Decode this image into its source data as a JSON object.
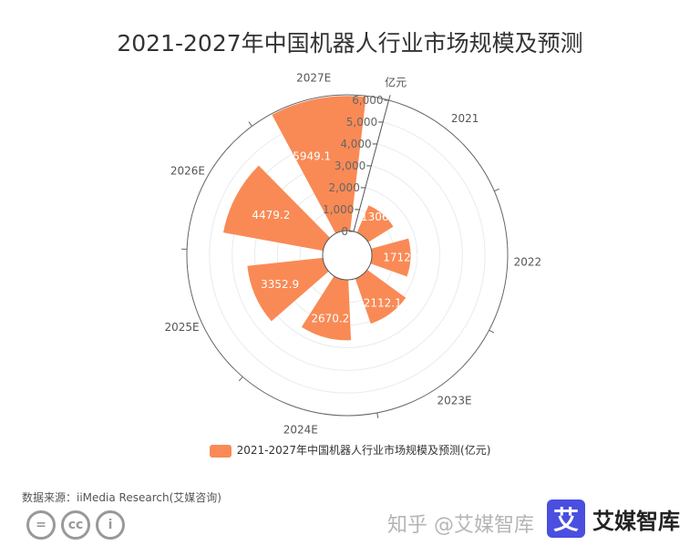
{
  "title": "2021-2027年中国机器人行业市场规模及预测",
  "chart_data": {
    "type": "polar-bar",
    "title": "2021-2027年中国机器人行业市场规模及预测",
    "categories": [
      "2021",
      "2022",
      "2023E",
      "2024E",
      "2025E",
      "2026E",
      "2027E"
    ],
    "series": [
      {
        "name": "2021-2027年中国机器人行业市场规模及预测(亿元)",
        "values": [
          1306.8,
          1712.4,
          2112.1,
          2670.2,
          3352.9,
          4479.2,
          5949.1
        ]
      }
    ],
    "data_labels": [
      "1306.8",
      "1712.4",
      "2112.1",
      "2670.2",
      "3352.9",
      "4479.2",
      "5949.1"
    ],
    "radial_axis": {
      "name": "亿元",
      "range": [
        0,
        6000
      ],
      "ticks": [
        "0",
        "1,000",
        "2,000",
        "3,000",
        "4,000",
        "5,000",
        "6,000"
      ]
    },
    "grid": true,
    "legend": "bottom",
    "color": "#f98a55"
  },
  "source": "数据来源：iiMedia Research(艾媒咨询)",
  "brand": {
    "logo": "艾",
    "name": "艾媒智库",
    "watermark": "知乎 @艾媒智库"
  },
  "cc_icons": [
    "=",
    "cc",
    "i"
  ]
}
